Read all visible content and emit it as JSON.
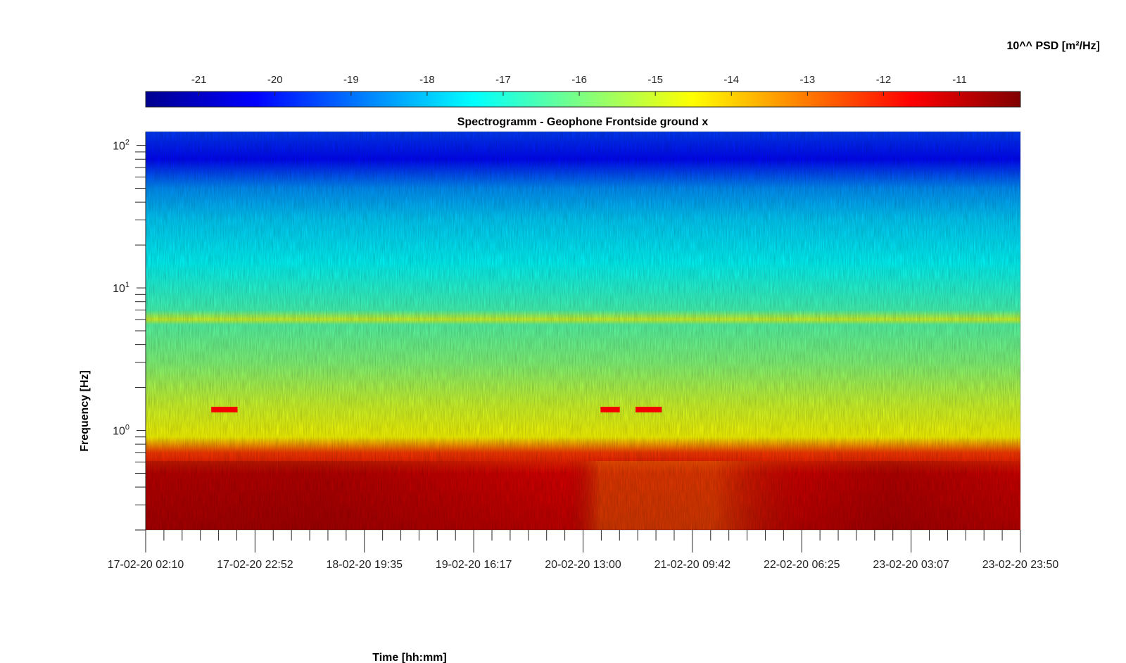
{
  "chart_data": {
    "type": "heatmap",
    "title": "Spectrogramm - Geophone Frontside ground x",
    "xlabel": "Time [hh:mm]",
    "ylabel": "Frequency [Hz]",
    "y_scale": "log",
    "ylim": [
      0.2,
      125
    ],
    "y_ticks": [
      {
        "value": 1,
        "base": "10",
        "exp": "0"
      },
      {
        "value": 10,
        "base": "10",
        "exp": "1"
      },
      {
        "value": 100,
        "base": "10",
        "exp": "2"
      }
    ],
    "x_range": [
      "17-02-20 02:10",
      "23-02-20 23:50"
    ],
    "x_tick_labels": [
      "17-02-20 02:10",
      "17-02-20 22:52",
      "18-02-20 19:35",
      "19-02-20 16:17",
      "20-02-20 13:00",
      "21-02-20 09:42",
      "22-02-20 06:25",
      "23-02-20 03:07",
      "23-02-20 23:50"
    ],
    "colorbar": {
      "label": "10^^ PSD [m²/Hz]",
      "colormap": "jet",
      "range": [
        -21.7,
        -10.2
      ],
      "ticks": [
        -21,
        -20,
        -19,
        -18,
        -17,
        -16,
        -15,
        -14,
        -13,
        -12,
        -11
      ]
    },
    "psd_profile": [
      {
        "f": 0.2,
        "psd": -11.0
      },
      {
        "f": 0.5,
        "psd": -11.3
      },
      {
        "f": 0.7,
        "psd": -12.3
      },
      {
        "f": 0.9,
        "psd": -14.5
      },
      {
        "f": 1.5,
        "psd": -15.0
      },
      {
        "f": 3.0,
        "psd": -15.9
      },
      {
        "f": 5.5,
        "psd": -16.4
      },
      {
        "f": 6.0,
        "psd": -15.0
      },
      {
        "f": 7.0,
        "psd": -16.6
      },
      {
        "f": 15,
        "psd": -17.4
      },
      {
        "f": 30,
        "psd": -17.9
      },
      {
        "f": 50,
        "psd": -18.6
      },
      {
        "f": 80,
        "psd": -20.2
      },
      {
        "f": 125,
        "psd": -19.6
      }
    ],
    "events": [
      {
        "t_start": 0.075,
        "t_end": 0.105,
        "f": 1.4,
        "psd": -11.5
      },
      {
        "t_start": 0.52,
        "t_end": 0.542,
        "f": 1.4,
        "psd": -11.5
      },
      {
        "t_start": 0.56,
        "t_end": 0.59,
        "f": 1.4,
        "psd": -11.5
      }
    ]
  }
}
